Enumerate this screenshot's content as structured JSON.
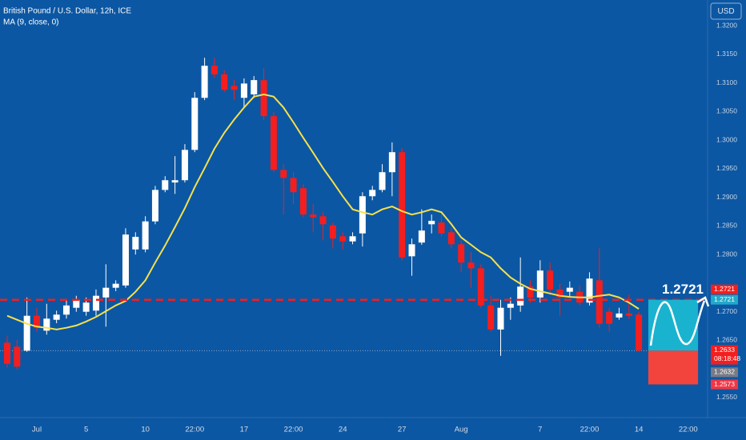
{
  "header": {
    "symbol": "British Pound / U.S. Dollar, 12h, ICE",
    "indicator": "MA (9, close, 0)",
    "currency": "USD"
  },
  "chart_data": {
    "type": "candlestick",
    "categories": [
      null,
      null,
      null,
      "Jul",
      null,
      null,
      null,
      null,
      "5",
      null,
      null,
      null,
      null,
      null,
      "10",
      null,
      null,
      null,
      null,
      "22:00",
      null,
      null,
      null,
      null,
      "17",
      null,
      null,
      null,
      null,
      "22:00",
      null,
      null,
      null,
      null,
      "24",
      null,
      null,
      null,
      null,
      null,
      "27",
      null,
      null,
      null,
      null,
      null,
      "Aug",
      null,
      null,
      null,
      null,
      null,
      null,
      null,
      "7",
      null,
      null,
      null,
      null,
      "22:00",
      null,
      null,
      null,
      null,
      "14",
      null,
      null,
      null,
      null,
      "22:00"
    ],
    "open": [
      1.2646,
      1.2639,
      1.2632,
      1.2693,
      1.2667,
      1.2686,
      1.2695,
      1.2707,
      1.27,
      1.2702,
      1.2725,
      1.2742,
      1.2746,
      1.2809,
      1.2809,
      1.2858,
      1.2913,
      1.2926,
      1.293,
      1.2983,
      1.3074,
      1.313,
      1.3115,
      1.3095,
      1.3074,
      1.308,
      1.3105,
      1.3042,
      1.2948,
      1.2934,
      1.2916,
      1.287,
      1.2867,
      1.2851,
      1.2832,
      1.2823,
      1.2837,
      1.2902,
      1.2913,
      1.2944,
      1.2979,
      1.2797,
      1.2821,
      1.2853,
      1.2856,
      1.2839,
      1.2818,
      1.2786,
      1.2776,
      1.2711,
      1.2669,
      1.2707,
      1.2711,
      1.2744,
      1.2725,
      1.2772,
      1.2739,
      1.2735,
      1.2735,
      1.2716,
      1.2755,
      1.27,
      1.269,
      1.2697,
      1.2695,
      null,
      null,
      null,
      null,
      null
    ],
    "high": [
      1.2658,
      1.2651,
      1.2725,
      1.2707,
      1.2714,
      1.2702,
      1.2721,
      1.2728,
      1.2725,
      1.2739,
      1.2783,
      1.2755,
      1.2846,
      1.2839,
      1.2867,
      1.292,
      1.2937,
      1.2972,
      1.2993,
      1.3084,
      1.3144,
      1.3144,
      1.3122,
      1.3105,
      1.3108,
      1.3112,
      1.3126,
      1.3049,
      1.2958,
      1.2944,
      1.2923,
      1.2888,
      1.2874,
      1.2856,
      1.2839,
      1.2839,
      1.2909,
      1.292,
      1.2958,
      1.2996,
      1.2986,
      1.2828,
      1.2879,
      1.287,
      1.2874,
      1.2846,
      1.2825,
      1.2804,
      1.2783,
      1.2728,
      1.2721,
      1.2725,
      1.2795,
      1.2755,
      1.279,
      1.2786,
      1.2749,
      1.2753,
      1.2746,
      1.2769,
      1.2811,
      1.2707,
      1.2707,
      1.273,
      1.27,
      null,
      null,
      null,
      null,
      null
    ],
    "low": [
      1.2602,
      1.2599,
      1.263,
      1.2665,
      1.266,
      1.268,
      1.2688,
      1.27,
      1.2693,
      1.2693,
      1.2674,
      1.2736,
      1.2742,
      1.28,
      1.2804,
      1.2853,
      1.2909,
      1.2906,
      1.2926,
      1.2979,
      1.307,
      1.3109,
      1.3084,
      1.307,
      1.3056,
      1.3074,
      1.3035,
      1.2944,
      1.287,
      1.2888,
      1.2865,
      1.2839,
      1.2825,
      1.2811,
      1.2809,
      1.2818,
      1.2814,
      1.2895,
      1.2909,
      1.2902,
      1.279,
      1.2763,
      1.2817,
      1.2837,
      1.2832,
      1.2811,
      1.2769,
      1.2742,
      1.2707,
      1.2665,
      1.2623,
      1.2686,
      1.27,
      1.2716,
      1.2716,
      1.273,
      1.2693,
      1.2725,
      1.2711,
      1.2711,
      1.2672,
      1.2665,
      1.2686,
      1.2688,
      1.263,
      null,
      null,
      null,
      null,
      null
    ],
    "close": [
      1.2609,
      1.2604,
      1.2693,
      1.2672,
      1.2688,
      1.2695,
      1.2711,
      1.2721,
      1.2716,
      1.2728,
      1.2742,
      1.2749,
      1.2835,
      1.2831,
      1.2858,
      1.2913,
      1.293,
      1.293,
      1.2983,
      1.3074,
      1.313,
      1.3115,
      1.3088,
      1.3088,
      1.3099,
      1.3105,
      1.3042,
      1.2948,
      1.2934,
      1.2909,
      1.287,
      1.2865,
      1.2853,
      1.2828,
      1.2823,
      1.2832,
      1.2902,
      1.2913,
      1.2944,
      1.2979,
      1.2795,
      1.2818,
      1.2842,
      1.2859,
      1.2837,
      1.2818,
      1.2786,
      1.2776,
      1.2711,
      1.2669,
      1.2707,
      1.2714,
      1.2744,
      1.2725,
      1.2772,
      1.2739,
      1.2725,
      1.2742,
      1.2716,
      1.2758,
      1.2679,
      1.2679,
      1.2697,
      1.2693,
      1.2632,
      null,
      null,
      null,
      null,
      null
    ],
    "ma": [
      1.2693,
      1.2686,
      1.2679,
      1.2674,
      1.2672,
      1.2669,
      1.2672,
      1.2676,
      1.2683,
      1.2691,
      1.2701,
      1.2711,
      1.2719,
      1.2735,
      1.2755,
      1.2786,
      1.2816,
      1.2848,
      1.2881,
      1.2918,
      1.2951,
      1.2985,
      1.3013,
      1.3036,
      1.3057,
      1.3076,
      1.308,
      1.3076,
      1.3057,
      1.3031,
      1.3004,
      1.2978,
      1.2951,
      1.2927,
      1.2902,
      1.2879,
      1.2874,
      1.287,
      1.2879,
      1.2884,
      1.2876,
      1.287,
      1.2874,
      1.2879,
      1.2874,
      1.2853,
      1.283,
      1.2817,
      1.2804,
      1.2795,
      1.2776,
      1.276,
      1.2749,
      1.274,
      1.2736,
      1.2732,
      1.2728,
      1.2726,
      1.2725,
      1.2725,
      1.2728,
      1.273,
      1.2725,
      1.2716,
      1.2705,
      null,
      null,
      null,
      null,
      null
    ],
    "up_color": "#ffffff",
    "down_color": "#f41e1e",
    "ma_color": "#f7e14a",
    "ylim": [
      1.2515,
      1.3245
    ],
    "yticks": [
      {
        "value": 1.32,
        "label": "1.3200"
      },
      {
        "value": 1.315,
        "label": "1.3150"
      },
      {
        "value": 1.31,
        "label": "1.3100"
      },
      {
        "value": 1.305,
        "label": "1.3050"
      },
      {
        "value": 1.3,
        "label": "1.3000"
      },
      {
        "value": 1.295,
        "label": "1.2950"
      },
      {
        "value": 1.29,
        "label": "1.2900"
      },
      {
        "value": 1.285,
        "label": "1.2850"
      },
      {
        "value": 1.28,
        "label": "1.2800"
      },
      {
        "value": 1.27,
        "label": "1.2700"
      },
      {
        "value": 1.265,
        "label": "1.2650"
      },
      {
        "value": 1.255,
        "label": "1.2550"
      }
    ],
    "price_labels": [
      {
        "value": 1.2721,
        "label": "1.2721",
        "color": "#f41e1e"
      },
      {
        "value": 1.2721,
        "label": "1.2721",
        "color": "#22a9c9"
      },
      {
        "value": 1.2633,
        "label": "1.2633",
        "color": "#f41e1e",
        "countdown": "08:18:48"
      },
      {
        "value": 1.2632,
        "label": "1.2632",
        "color": "#787b86"
      },
      {
        "value": 1.2573,
        "label": "1.2573",
        "color": "#f23645"
      }
    ],
    "annotation": {
      "value": 1.2721,
      "label": "1.2721"
    },
    "long_position": {
      "target": 1.2721,
      "entry": 1.2632,
      "stop": 1.2573,
      "target_color": "#1ab3cf",
      "stop_color": "#f2443c"
    }
  }
}
